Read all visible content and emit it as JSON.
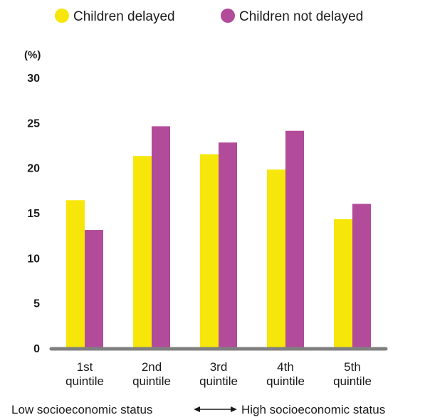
{
  "chart_data": {
    "type": "bar",
    "title": "",
    "ylabel": "(%)",
    "xlabel": "",
    "ylim": [
      0,
      30
    ],
    "yticks": [
      0,
      5,
      10,
      15,
      20,
      25,
      30
    ],
    "categories": [
      [
        "1st",
        "quintile"
      ],
      [
        "2nd",
        "quintile"
      ],
      [
        "3rd",
        "quintile"
      ],
      [
        "4th",
        "quintile"
      ],
      [
        "5th",
        "quintile"
      ]
    ],
    "series": [
      {
        "name": "Children delayed",
        "color": "#f7e60a",
        "values": [
          16.4,
          21.3,
          21.5,
          19.8,
          14.3
        ]
      },
      {
        "name": "Children not delayed",
        "color": "#b24b9a",
        "values": [
          13.1,
          24.6,
          22.8,
          24.1,
          16.0
        ]
      }
    ],
    "grid": false,
    "legend_position": "top-left",
    "axis_color": "#808080",
    "footer": {
      "left": "Low socioeconomic status",
      "right": "High socioeconomic status"
    }
  }
}
